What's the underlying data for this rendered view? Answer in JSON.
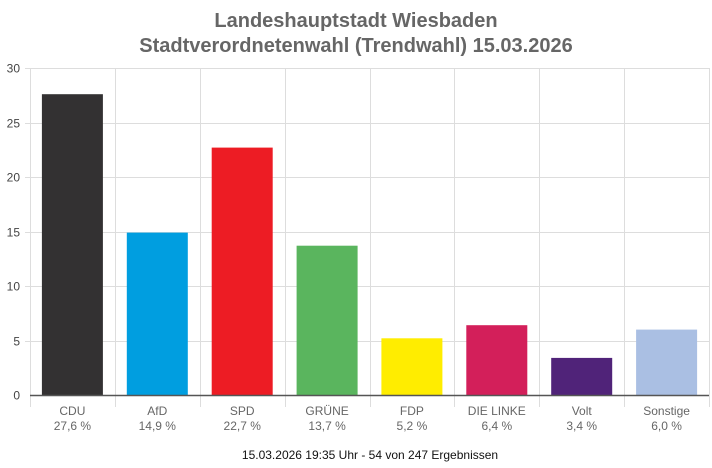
{
  "chart_data": {
    "type": "bar",
    "title": "Landeshauptstadt Wiesbaden",
    "subtitle": "Stadtverordnetenwahl (Trendwahl) 15.03.2026",
    "categories": [
      "CDU",
      "AfD",
      "SPD",
      "GRÜNE",
      "FDP",
      "DIE LINKE",
      "Volt",
      "Sonstige"
    ],
    "values": [
      27.6,
      14.9,
      22.7,
      13.7,
      5.2,
      6.4,
      3.4,
      6.0
    ],
    "value_labels": [
      "27,6 %",
      "14,9 %",
      "22,7 %",
      "13,7 %",
      "5,2 %",
      "6,4 %",
      "3,4 %",
      "6,0 %"
    ],
    "colors": [
      "#333132",
      "#009ee0",
      "#ed1c24",
      "#5ab55e",
      "#ffed00",
      "#d31f5a",
      "#502379",
      "#aabfe3"
    ],
    "xlabel": "",
    "ylabel": "",
    "ylim": [
      0,
      30
    ],
    "yticks": [
      0,
      5,
      10,
      15,
      20,
      25,
      30
    ],
    "grid": true,
    "legend": "none"
  },
  "footer": "15.03.2026 19:35 Uhr - 54 von 247 Ergebnissen"
}
